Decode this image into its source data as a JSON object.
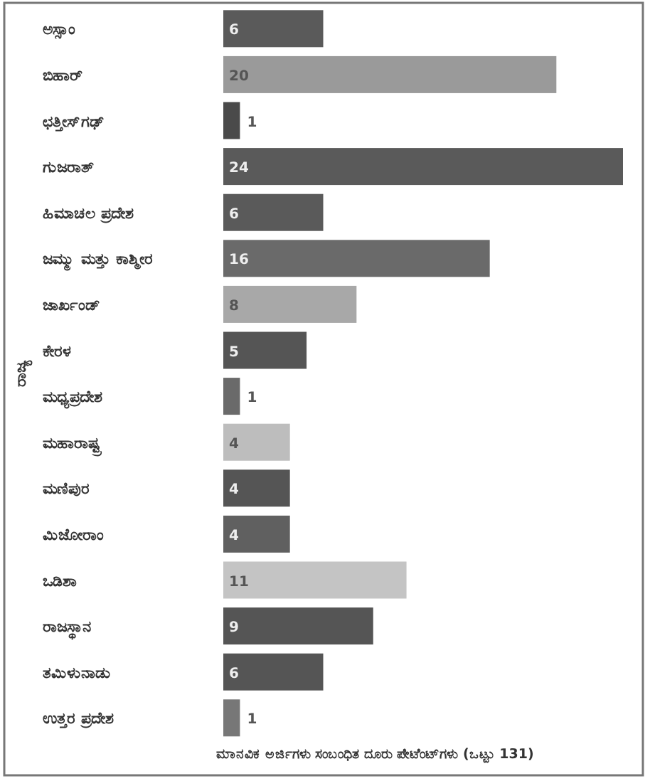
{
  "chart_data": {
    "type": "bar",
    "orientation": "horizontal",
    "ylabel": "ರಾಜ್ಯ",
    "categories": [
      "ಅಸ್ಸಾಂ",
      "ಬಿಹಾರ್",
      "ಛತ್ತೀಸ್‌ಗಢ್",
      "ಗುಜರಾತ್",
      "ಹಿಮಾಚಲ ಪ್ರದೇಶ",
      "ಜಮ್ಮು ಮತ್ತು ಕಾಶ್ಮೀರ",
      "ಜಾರ್ಖಂಡ್",
      "ಕೇರಳ",
      "ಮಧ್ಯಪ್ರದೇಶ",
      "ಮಹಾರಾಷ್ಟ್ರ",
      "ಮಣಿಪುರ",
      "ಮಿಜೋರಾಂ",
      "ಒಡಿಶಾ",
      "ರಾಜಸ್ಥಾನ",
      "ತಮಿಳುನಾಡು",
      "ಉತ್ತರ ಪ್ರದೇಶ"
    ],
    "values": [
      6,
      20,
      1,
      24,
      6,
      16,
      8,
      5,
      1,
      4,
      4,
      4,
      11,
      9,
      6,
      1
    ],
    "colors": [
      "#5a5a5a",
      "#9a9a9a",
      "#4a4a4a",
      "#5a5a5a",
      "#5a5a5a",
      "#6a6a6a",
      "#a8a8a8",
      "#555555",
      "#6a6a6a",
      "#bdbdbd",
      "#555555",
      "#606060",
      "#c4c4c4",
      "#555555",
      "#555555",
      "#777777"
    ],
    "data_labels": true,
    "annotations": [
      "ಮಾನವಿಕ ಅರ್ಜಿಗಳು ಸಂಬಂಧಿತ ದೂರು ಪೇಟೆಂಟ್‌ಗಳು (ಒಟ್ಟು 131)"
    ]
  }
}
